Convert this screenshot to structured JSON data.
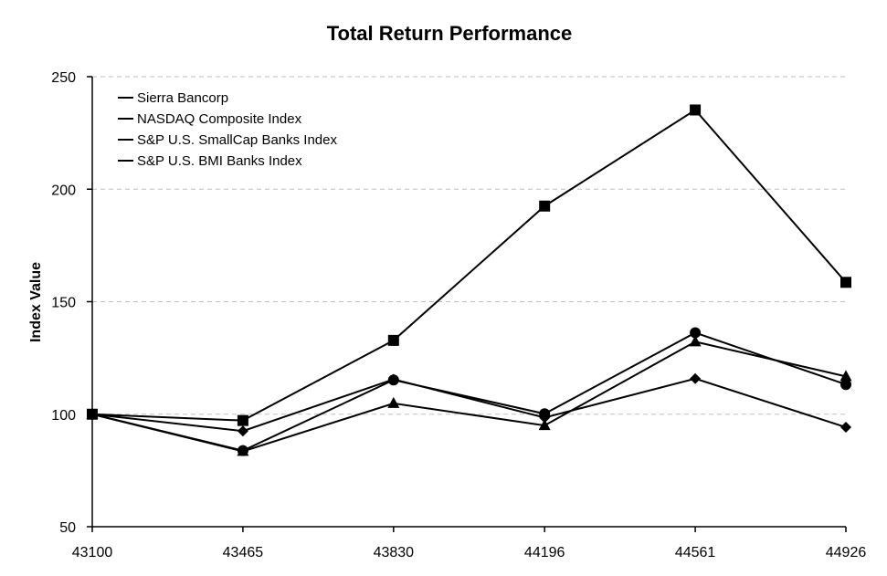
{
  "chart_data": {
    "type": "line",
    "title": "Total Return Performance",
    "xlabel": "",
    "ylabel": "Index Value",
    "x": [
      43100,
      43465,
      43830,
      44196,
      44561,
      44926
    ],
    "ylim": [
      50,
      250
    ],
    "yticks": [
      50,
      100,
      150,
      200,
      250
    ],
    "grid": true,
    "legend_position": "top-left",
    "series": [
      {
        "name": "Sierra Bancorp",
        "marker": "diamond",
        "values": [
          100,
          92.5,
          115.5,
          98.5,
          115.8,
          94.2
        ]
      },
      {
        "name": "NASDAQ Composite Index",
        "marker": "square",
        "values": [
          100,
          97.2,
          132.8,
          192.5,
          235.2,
          158.6
        ]
      },
      {
        "name": "S&P U.S. SmallCap Banks Index",
        "marker": "triangle",
        "values": [
          100,
          83.5,
          104.8,
          95,
          132.2,
          116.8
        ]
      },
      {
        "name": "S&P U.S. BMI Banks Index",
        "marker": "circle",
        "values": [
          100,
          83.8,
          115.2,
          100.2,
          136.2,
          113.2
        ]
      }
    ]
  }
}
